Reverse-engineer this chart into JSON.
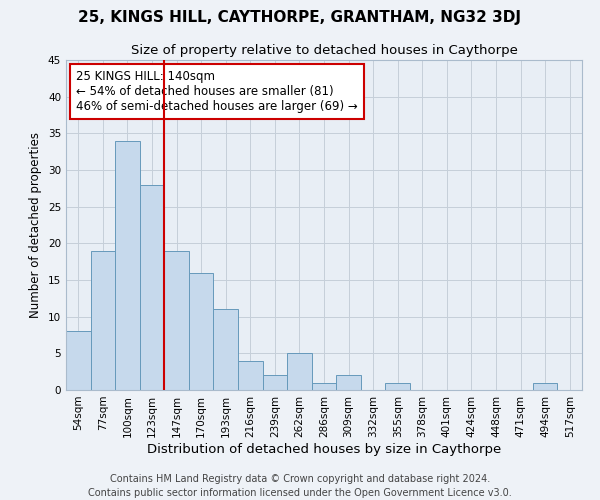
{
  "title": "25, KINGS HILL, CAYTHORPE, GRANTHAM, NG32 3DJ",
  "subtitle": "Size of property relative to detached houses in Caythorpe",
  "xlabel": "Distribution of detached houses by size in Caythorpe",
  "ylabel": "Number of detached properties",
  "bin_labels": [
    "54sqm",
    "77sqm",
    "100sqm",
    "123sqm",
    "147sqm",
    "170sqm",
    "193sqm",
    "216sqm",
    "239sqm",
    "262sqm",
    "286sqm",
    "309sqm",
    "332sqm",
    "355sqm",
    "378sqm",
    "401sqm",
    "424sqm",
    "448sqm",
    "471sqm",
    "494sqm",
    "517sqm"
  ],
  "bar_values": [
    8,
    19,
    34,
    28,
    19,
    16,
    11,
    4,
    2,
    5,
    1,
    2,
    0,
    1,
    0,
    0,
    0,
    0,
    0,
    1,
    0
  ],
  "bar_color": "#c6d9ec",
  "bar_edge_color": "#6699bb",
  "vline_x": 4,
  "vline_color": "#cc0000",
  "annotation_line1": "25 KINGS HILL: 140sqm",
  "annotation_line2": "← 54% of detached houses are smaller (81)",
  "annotation_line3": "46% of semi-detached houses are larger (69) →",
  "annotation_box_facecolor": "#ffffff",
  "annotation_box_edgecolor": "#cc0000",
  "ylim": [
    0,
    45
  ],
  "yticks": [
    0,
    5,
    10,
    15,
    20,
    25,
    30,
    35,
    40,
    45
  ],
  "footer_line1": "Contains HM Land Registry data © Crown copyright and database right 2024.",
  "footer_line2": "Contains public sector information licensed under the Open Government Licence v3.0.",
  "background_color": "#eef2f7",
  "plot_background_color": "#e8eef5",
  "grid_color": "#c5cfd9",
  "title_fontsize": 11,
  "subtitle_fontsize": 9.5,
  "xlabel_fontsize": 9.5,
  "ylabel_fontsize": 8.5,
  "tick_fontsize": 7.5,
  "annotation_fontsize": 8.5,
  "footer_fontsize": 7
}
